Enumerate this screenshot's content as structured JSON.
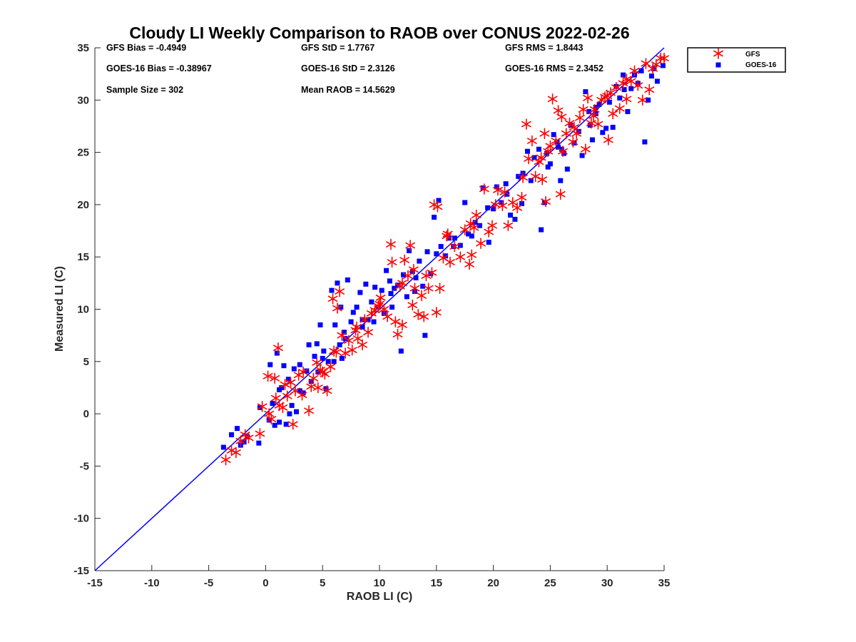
{
  "chart_data": {
    "type": "scatter",
    "title": "Cloudy LI Weekly Comparison to RAOB over CONUS 2022-02-26",
    "xlabel": "RAOB LI (C)",
    "ylabel": "Measured LI (C)",
    "xlim": [
      -15,
      35
    ],
    "ylim": [
      -15,
      35
    ],
    "xticks": [
      "-15",
      "-10",
      "-5",
      "0",
      "5",
      "10",
      "15",
      "20",
      "25",
      "30",
      "35"
    ],
    "yticks": [
      "-15",
      "-10",
      "-5",
      "0",
      "5",
      "10",
      "15",
      "20",
      "25",
      "30",
      "35"
    ],
    "grid": false,
    "legend_position": "outside-top-right",
    "stats": [
      [
        "GFS Bias = -0.4949",
        "GFS StD = 1.7767",
        "GFS RMS = 1.8443"
      ],
      [
        "GOES-16 Bias = -0.38967",
        "GOES-16 StD = 2.3126",
        "GOES-16 RMS = 2.3452"
      ],
      [
        "Sample Size = 302",
        "Mean RAOB = 14.5629",
        ""
      ]
    ],
    "reference_line": {
      "from": [
        -15,
        -15
      ],
      "to": [
        35,
        35
      ],
      "color": "#0000ff"
    },
    "series": [
      {
        "name": "GFS",
        "marker": "asterisk",
        "color": "#ff0000",
        "points": [
          [
            -3.5,
            -4.4
          ],
          [
            -3.0,
            -3.5
          ],
          [
            -2.6,
            -3.7
          ],
          [
            -2.2,
            -2.6
          ],
          [
            -1.8,
            -2.0
          ],
          [
            -1.5,
            -2.3
          ],
          [
            -0.5,
            -1.9
          ],
          [
            -0.3,
            0.7
          ],
          [
            0.2,
            3.6
          ],
          [
            0.3,
            0.0
          ],
          [
            0.5,
            -0.5
          ],
          [
            0.8,
            3.4
          ],
          [
            0.9,
            1.5
          ],
          [
            1.1,
            6.3
          ],
          [
            1.2,
            0.8
          ],
          [
            1.5,
            0.6
          ],
          [
            1.7,
            2.8
          ],
          [
            1.9,
            1.7
          ],
          [
            2.2,
            3.0
          ],
          [
            2.4,
            -1.0
          ],
          [
            2.6,
            2.2
          ],
          [
            2.9,
            3.7
          ],
          [
            3.2,
            1.8
          ],
          [
            3.3,
            4.0
          ],
          [
            3.8,
            0.3
          ],
          [
            4.0,
            2.6
          ],
          [
            4.2,
            3.4
          ],
          [
            4.5,
            4.9
          ],
          [
            4.8,
            4.2
          ],
          [
            5.2,
            3.8
          ],
          [
            5.4,
            2.2
          ],
          [
            5.7,
            4.5
          ],
          [
            5.9,
            11.0
          ],
          [
            6.2,
            5.9
          ],
          [
            6.3,
            10.1
          ],
          [
            6.5,
            11.7
          ],
          [
            6.7,
            7.5
          ],
          [
            7.0,
            5.8
          ],
          [
            7.3,
            7.0
          ],
          [
            7.6,
            6.1
          ],
          [
            7.9,
            8.0
          ],
          [
            8.1,
            7.2
          ],
          [
            8.5,
            6.6
          ],
          [
            8.7,
            9.0
          ],
          [
            9.0,
            7.8
          ],
          [
            9.3,
            9.6
          ],
          [
            9.6,
            9.9
          ],
          [
            9.9,
            10.3
          ],
          [
            10.1,
            11.1
          ],
          [
            10.4,
            10.0
          ],
          [
            10.7,
            9.3
          ],
          [
            11.0,
            16.2
          ],
          [
            11.1,
            14.5
          ],
          [
            11.4,
            8.8
          ],
          [
            11.6,
            7.6
          ],
          [
            11.8,
            12.2
          ],
          [
            12.0,
            8.5
          ],
          [
            12.2,
            14.7
          ],
          [
            12.5,
            13.2
          ],
          [
            12.7,
            16.1
          ],
          [
            12.9,
            10.4
          ],
          [
            13.1,
            12.0
          ],
          [
            13.4,
            9.5
          ],
          [
            13.7,
            11.3
          ],
          [
            13.9,
            9.3
          ],
          [
            14.1,
            13.2
          ],
          [
            14.3,
            12.0
          ],
          [
            14.6,
            13.5
          ],
          [
            14.8,
            20.0
          ],
          [
            15.0,
            9.7
          ],
          [
            15.1,
            19.8
          ],
          [
            15.3,
            12.0
          ],
          [
            15.6,
            14.9
          ],
          [
            15.9,
            17.0
          ],
          [
            16.2,
            14.5
          ],
          [
            16.6,
            16.0
          ],
          [
            17.1,
            15.0
          ],
          [
            17.5,
            17.6
          ],
          [
            17.9,
            14.3
          ],
          [
            18.1,
            15.2
          ],
          [
            18.3,
            17.8
          ],
          [
            18.5,
            19.0
          ],
          [
            18.9,
            16.3
          ],
          [
            19.2,
            21.5
          ],
          [
            19.6,
            17.4
          ],
          [
            19.9,
            18.0
          ],
          [
            20.4,
            21.4
          ],
          [
            20.8,
            19.9
          ],
          [
            21.3,
            18.0
          ],
          [
            21.7,
            20.2
          ],
          [
            22.1,
            19.7
          ],
          [
            22.5,
            20.7
          ],
          [
            22.9,
            27.7
          ],
          [
            23.1,
            24.4
          ],
          [
            23.4,
            26.1
          ],
          [
            23.7,
            22.7
          ],
          [
            24.0,
            24.1
          ],
          [
            24.3,
            22.4
          ],
          [
            24.6,
            20.3
          ],
          [
            24.8,
            25.1
          ],
          [
            25.0,
            25.6
          ],
          [
            25.2,
            30.1
          ],
          [
            25.5,
            26.1
          ],
          [
            25.7,
            29.0
          ],
          [
            25.9,
            21.0
          ],
          [
            26.1,
            25.1
          ],
          [
            26.4,
            26.8
          ],
          [
            26.7,
            27.8
          ],
          [
            27.0,
            26.0
          ],
          [
            27.3,
            26.8
          ],
          [
            27.6,
            28.3
          ],
          [
            27.9,
            29.1
          ],
          [
            28.1,
            25.3
          ],
          [
            28.3,
            30.2
          ],
          [
            28.6,
            27.8
          ],
          [
            28.9,
            29.1
          ],
          [
            29.2,
            27.7
          ],
          [
            29.5,
            30.0
          ],
          [
            29.8,
            30.3
          ],
          [
            30.1,
            26.2
          ],
          [
            30.3,
            30.7
          ],
          [
            30.5,
            28.7
          ],
          [
            30.8,
            31.2
          ],
          [
            31.1,
            29.2
          ],
          [
            31.4,
            31.6
          ],
          [
            31.7,
            30.1
          ],
          [
            32.1,
            31.8
          ],
          [
            32.4,
            32.8
          ],
          [
            32.7,
            31.4
          ],
          [
            33.1,
            30.0
          ],
          [
            33.4,
            33.5
          ],
          [
            33.7,
            31.0
          ],
          [
            34.0,
            33.0
          ],
          [
            34.3,
            33.4
          ],
          [
            34.7,
            34.0
          ],
          [
            35.0,
            34.0
          ],
          [
            24.5,
            26.8
          ],
          [
            22.6,
            22.6
          ],
          [
            26.0,
            28.4
          ],
          [
            28.8,
            28.5
          ],
          [
            4.6,
            2.5
          ],
          [
            5.0,
            4.0
          ],
          [
            6.0,
            6.0
          ],
          [
            8.0,
            8.3
          ],
          [
            10.0,
            10.5
          ],
          [
            12.0,
            12.5
          ],
          [
            13.0,
            13.8
          ],
          [
            16.0,
            17.2
          ],
          [
            18.0,
            18.2
          ],
          [
            20.2,
            20.0
          ],
          [
            21.0,
            21.2
          ],
          [
            24.2,
            24.5
          ],
          [
            27.1,
            27.4
          ],
          [
            30.0,
            30.4
          ],
          [
            31.7,
            32.0
          ]
        ]
      },
      {
        "name": "GOES-16",
        "marker": "square",
        "color": "#0000ff",
        "points": [
          [
            -3.7,
            -3.2
          ],
          [
            -3.0,
            -2.0
          ],
          [
            -2.5,
            -1.4
          ],
          [
            -2.2,
            -3.0
          ],
          [
            -1.9,
            -2.7
          ],
          [
            -1.6,
            -2.2
          ],
          [
            -0.6,
            -2.8
          ],
          [
            -0.5,
            0.6
          ],
          [
            0.3,
            -0.6
          ],
          [
            0.4,
            4.7
          ],
          [
            0.6,
            1.0
          ],
          [
            0.8,
            -1.1
          ],
          [
            1.0,
            5.8
          ],
          [
            1.2,
            2.3
          ],
          [
            1.4,
            2.5
          ],
          [
            1.6,
            4.6
          ],
          [
            1.8,
            -1.0
          ],
          [
            2.0,
            3.3
          ],
          [
            2.3,
            0.8
          ],
          [
            2.5,
            4.3
          ],
          [
            2.7,
            0.2
          ],
          [
            3.0,
            4.7
          ],
          [
            3.3,
            2.0
          ],
          [
            3.6,
            4.1
          ],
          [
            3.8,
            6.6
          ],
          [
            4.0,
            3.1
          ],
          [
            4.3,
            5.5
          ],
          [
            4.6,
            4.0
          ],
          [
            4.8,
            8.5
          ],
          [
            5.1,
            6.0
          ],
          [
            5.3,
            2.4
          ],
          [
            5.5,
            5.0
          ],
          [
            5.8,
            11.8
          ],
          [
            6.1,
            8.5
          ],
          [
            6.3,
            12.5
          ],
          [
            6.5,
            6.6
          ],
          [
            6.7,
            5.3
          ],
          [
            6.9,
            7.8
          ],
          [
            7.2,
            12.8
          ],
          [
            7.5,
            8.8
          ],
          [
            7.7,
            9.7
          ],
          [
            8.0,
            10.2
          ],
          [
            8.3,
            11.6
          ],
          [
            8.5,
            8.3
          ],
          [
            8.8,
            12.4
          ],
          [
            9.0,
            9.0
          ],
          [
            9.3,
            10.7
          ],
          [
            9.6,
            12.1
          ],
          [
            9.9,
            10.2
          ],
          [
            10.2,
            11.8
          ],
          [
            10.4,
            9.6
          ],
          [
            10.6,
            13.7
          ],
          [
            10.9,
            12.7
          ],
          [
            11.1,
            10.2
          ],
          [
            11.3,
            12.0
          ],
          [
            11.6,
            12.3
          ],
          [
            11.9,
            6.0
          ],
          [
            12.1,
            13.3
          ],
          [
            12.4,
            11.2
          ],
          [
            12.6,
            15.6
          ],
          [
            12.9,
            13.6
          ],
          [
            13.1,
            11.7
          ],
          [
            13.5,
            14.6
          ],
          [
            13.8,
            12.2
          ],
          [
            14.0,
            7.5
          ],
          [
            14.2,
            15.5
          ],
          [
            14.5,
            13.4
          ],
          [
            14.8,
            18.8
          ],
          [
            15.0,
            15.3
          ],
          [
            15.2,
            20.4
          ],
          [
            15.4,
            16.0
          ],
          [
            15.8,
            15.1
          ],
          [
            16.1,
            16.8
          ],
          [
            16.6,
            16.8
          ],
          [
            17.1,
            16.1
          ],
          [
            17.5,
            20.2
          ],
          [
            17.8,
            17.2
          ],
          [
            18.1,
            17.0
          ],
          [
            18.4,
            18.3
          ],
          [
            18.8,
            18.0
          ],
          [
            19.1,
            21.6
          ],
          [
            19.6,
            16.4
          ],
          [
            20.0,
            19.6
          ],
          [
            20.3,
            21.7
          ],
          [
            20.7,
            20.2
          ],
          [
            21.1,
            22.0
          ],
          [
            21.5,
            19.0
          ],
          [
            21.9,
            18.6
          ],
          [
            22.2,
            22.7
          ],
          [
            22.6,
            23.0
          ],
          [
            23.0,
            25.1
          ],
          [
            23.3,
            22.3
          ],
          [
            23.6,
            24.5
          ],
          [
            24.0,
            25.3
          ],
          [
            24.2,
            17.6
          ],
          [
            24.5,
            20.2
          ],
          [
            24.7,
            24.9
          ],
          [
            25.0,
            23.9
          ],
          [
            25.3,
            26.7
          ],
          [
            25.6,
            26.0
          ],
          [
            25.9,
            22.3
          ],
          [
            26.2,
            24.9
          ],
          [
            26.5,
            23.4
          ],
          [
            26.8,
            27.6
          ],
          [
            27.1,
            25.9
          ],
          [
            27.5,
            27.0
          ],
          [
            27.8,
            24.7
          ],
          [
            28.1,
            30.8
          ],
          [
            28.4,
            28.9
          ],
          [
            28.7,
            26.2
          ],
          [
            29.0,
            28.7
          ],
          [
            29.3,
            29.6
          ],
          [
            29.6,
            26.9
          ],
          [
            29.9,
            27.3
          ],
          [
            30.2,
            29.8
          ],
          [
            30.5,
            27.4
          ],
          [
            30.8,
            31.3
          ],
          [
            31.1,
            30.2
          ],
          [
            31.4,
            32.4
          ],
          [
            31.8,
            28.9
          ],
          [
            32.1,
            31.1
          ],
          [
            32.4,
            32.4
          ],
          [
            32.7,
            31.6
          ],
          [
            33.0,
            32.8
          ],
          [
            33.3,
            26.0
          ],
          [
            33.6,
            30.0
          ],
          [
            33.9,
            32.3
          ],
          [
            34.1,
            33.0
          ],
          [
            34.4,
            31.8
          ],
          [
            34.9,
            33.3
          ],
          [
            22.5,
            20.1
          ],
          [
            24.8,
            23.6
          ],
          [
            26.0,
            25.3
          ],
          [
            28.5,
            27.6
          ],
          [
            3.0,
            2.2
          ],
          [
            5.0,
            5.3
          ],
          [
            6.0,
            5.0
          ],
          [
            7.0,
            7.2
          ],
          [
            8.5,
            9.0
          ],
          [
            9.5,
            8.8
          ],
          [
            11.0,
            11.5
          ],
          [
            13.2,
            13.0
          ],
          [
            16.5,
            16.0
          ],
          [
            19.5,
            19.7
          ],
          [
            21.2,
            21.0
          ],
          [
            25.7,
            25.5
          ],
          [
            29.0,
            29.3
          ],
          [
            31.5,
            31.0
          ],
          [
            2.1,
            0.0
          ],
          [
            1.2,
            -0.8
          ],
          [
            4.5,
            6.7
          ],
          [
            6.6,
            10.2
          ]
        ]
      }
    ]
  }
}
